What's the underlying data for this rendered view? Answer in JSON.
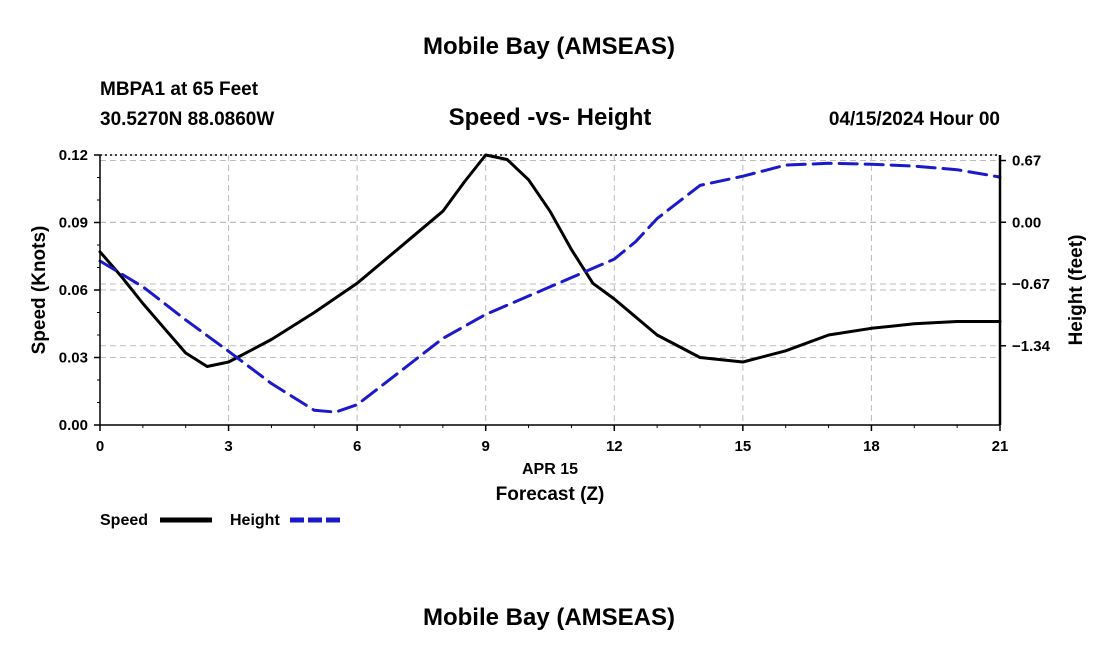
{
  "header": {
    "top_title": "Mobile Bay (AMSEAS)",
    "station": "MBPA1 at 65 Feet",
    "coords": "30.5270N  88.0860W",
    "chart_title": "Speed -vs- Height",
    "timestamp": "04/15/2024 Hour 00",
    "bottom_title": "Mobile Bay (AMSEAS)"
  },
  "legend": {
    "speed_label": "Speed",
    "height_label": "Height"
  },
  "colors": {
    "speed": "#000000",
    "height": "#1a1acc",
    "grid": "#bbbbbb"
  },
  "chart_data": {
    "type": "line",
    "title": "Speed -vs- Height",
    "xlabel": "Forecast (Z)",
    "xdate": "APR 15",
    "ylabel": "Speed (Knots)",
    "y2label": "Height (feet)",
    "xlim": [
      0,
      21
    ],
    "ylim": [
      0,
      0.12
    ],
    "y2lim": [
      -2.2,
      0.73
    ],
    "x_ticks": [
      0,
      3,
      6,
      9,
      12,
      15,
      18,
      21
    ],
    "x_tick_labels": [
      "0",
      "3",
      "6",
      "9",
      "12",
      "15",
      "18",
      "21"
    ],
    "y_ticks": [
      0,
      0.03,
      0.06,
      0.09,
      0.12
    ],
    "y_tick_labels": [
      "0.00",
      "0.03",
      "0.06",
      "0.09",
      "0.12"
    ],
    "y2_ticks": [
      0.67,
      0.0,
      -0.67,
      -1.34
    ],
    "y2_tick_labels": [
      "0.67",
      "0.00",
      "−0.67",
      "−1.34"
    ],
    "grid": true,
    "series": [
      {
        "name": "Speed",
        "axis": "left",
        "style": "solid",
        "x": [
          0,
          0.5,
          1,
          1.5,
          2,
          2.5,
          3,
          3.5,
          4,
          5,
          6,
          7,
          8,
          8.5,
          9,
          9.5,
          10,
          10.5,
          11,
          11.5,
          12,
          13,
          14,
          15,
          16,
          17,
          18,
          19,
          20,
          21
        ],
        "values": [
          0.077,
          0.066,
          0.054,
          0.043,
          0.032,
          0.026,
          0.028,
          0.033,
          0.038,
          0.05,
          0.063,
          0.079,
          0.095,
          0.108,
          0.12,
          0.118,
          0.109,
          0.095,
          0.078,
          0.063,
          0.056,
          0.04,
          0.03,
          0.028,
          0.033,
          0.04,
          0.043,
          0.045,
          0.046,
          0.046
        ]
      },
      {
        "name": "Height",
        "axis": "right",
        "style": "dashed",
        "x": [
          0,
          1,
          2,
          3,
          4,
          5,
          5.5,
          6,
          7,
          8,
          9,
          10,
          11,
          12,
          12.5,
          13,
          14,
          15,
          16,
          17,
          18,
          19,
          20,
          21
        ],
        "values": [
          -0.42,
          -0.7,
          -1.06,
          -1.4,
          -1.75,
          -2.04,
          -2.06,
          -1.98,
          -1.62,
          -1.26,
          -1.0,
          -0.8,
          -0.6,
          -0.4,
          -0.21,
          0.04,
          0.4,
          0.5,
          0.62,
          0.64,
          0.63,
          0.61,
          0.57,
          0.49
        ]
      }
    ]
  }
}
